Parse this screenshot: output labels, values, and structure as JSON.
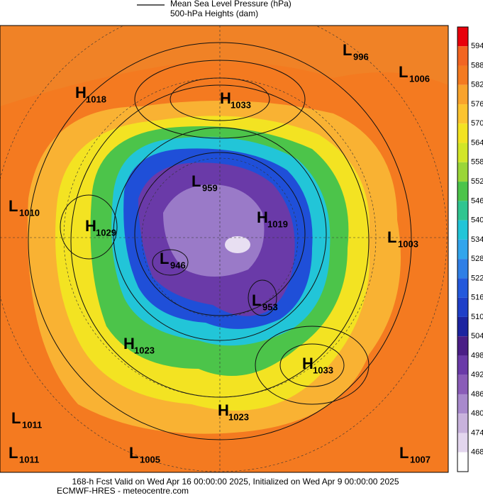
{
  "legend": {
    "mslp": "Mean Sea Level Pressure (hPa)",
    "heights": "500-hPa Heights (dam)"
  },
  "colorbar": {
    "labels": [
      594,
      588,
      582,
      576,
      570,
      564,
      558,
      552,
      546,
      540,
      534,
      528,
      522,
      516,
      510,
      504,
      498,
      492,
      486,
      480,
      474,
      468
    ]
  },
  "centers": [
    {
      "letter": "L",
      "value": 996
    },
    {
      "letter": "L",
      "value": 1006
    },
    {
      "letter": "H",
      "value": 1018
    },
    {
      "letter": "H",
      "value": 1033
    },
    {
      "letter": "L",
      "value": 1010
    },
    {
      "letter": "H",
      "value": 1029
    },
    {
      "letter": "L",
      "value": 959
    },
    {
      "letter": "H",
      "value": 1019
    },
    {
      "letter": "L",
      "value": 1003
    },
    {
      "letter": "L",
      "value": 946
    },
    {
      "letter": "L",
      "value": 953
    },
    {
      "letter": "H",
      "value": 1023
    },
    {
      "letter": "H",
      "value": 1033
    },
    {
      "letter": "H",
      "value": 1023
    },
    {
      "letter": "L",
      "value": 1011
    },
    {
      "letter": "L",
      "value": 1011
    },
    {
      "letter": "L",
      "value": 1005
    },
    {
      "letter": "L",
      "value": 1007
    }
  ],
  "footer": {
    "line1": "168-h Fcst Valid on Wed Apr 16 00:00:00 2025, Initialized on Wed Apr  9 00:00:00 2025",
    "line2": "ECMWF-HRES - meteocentre.com"
  }
}
